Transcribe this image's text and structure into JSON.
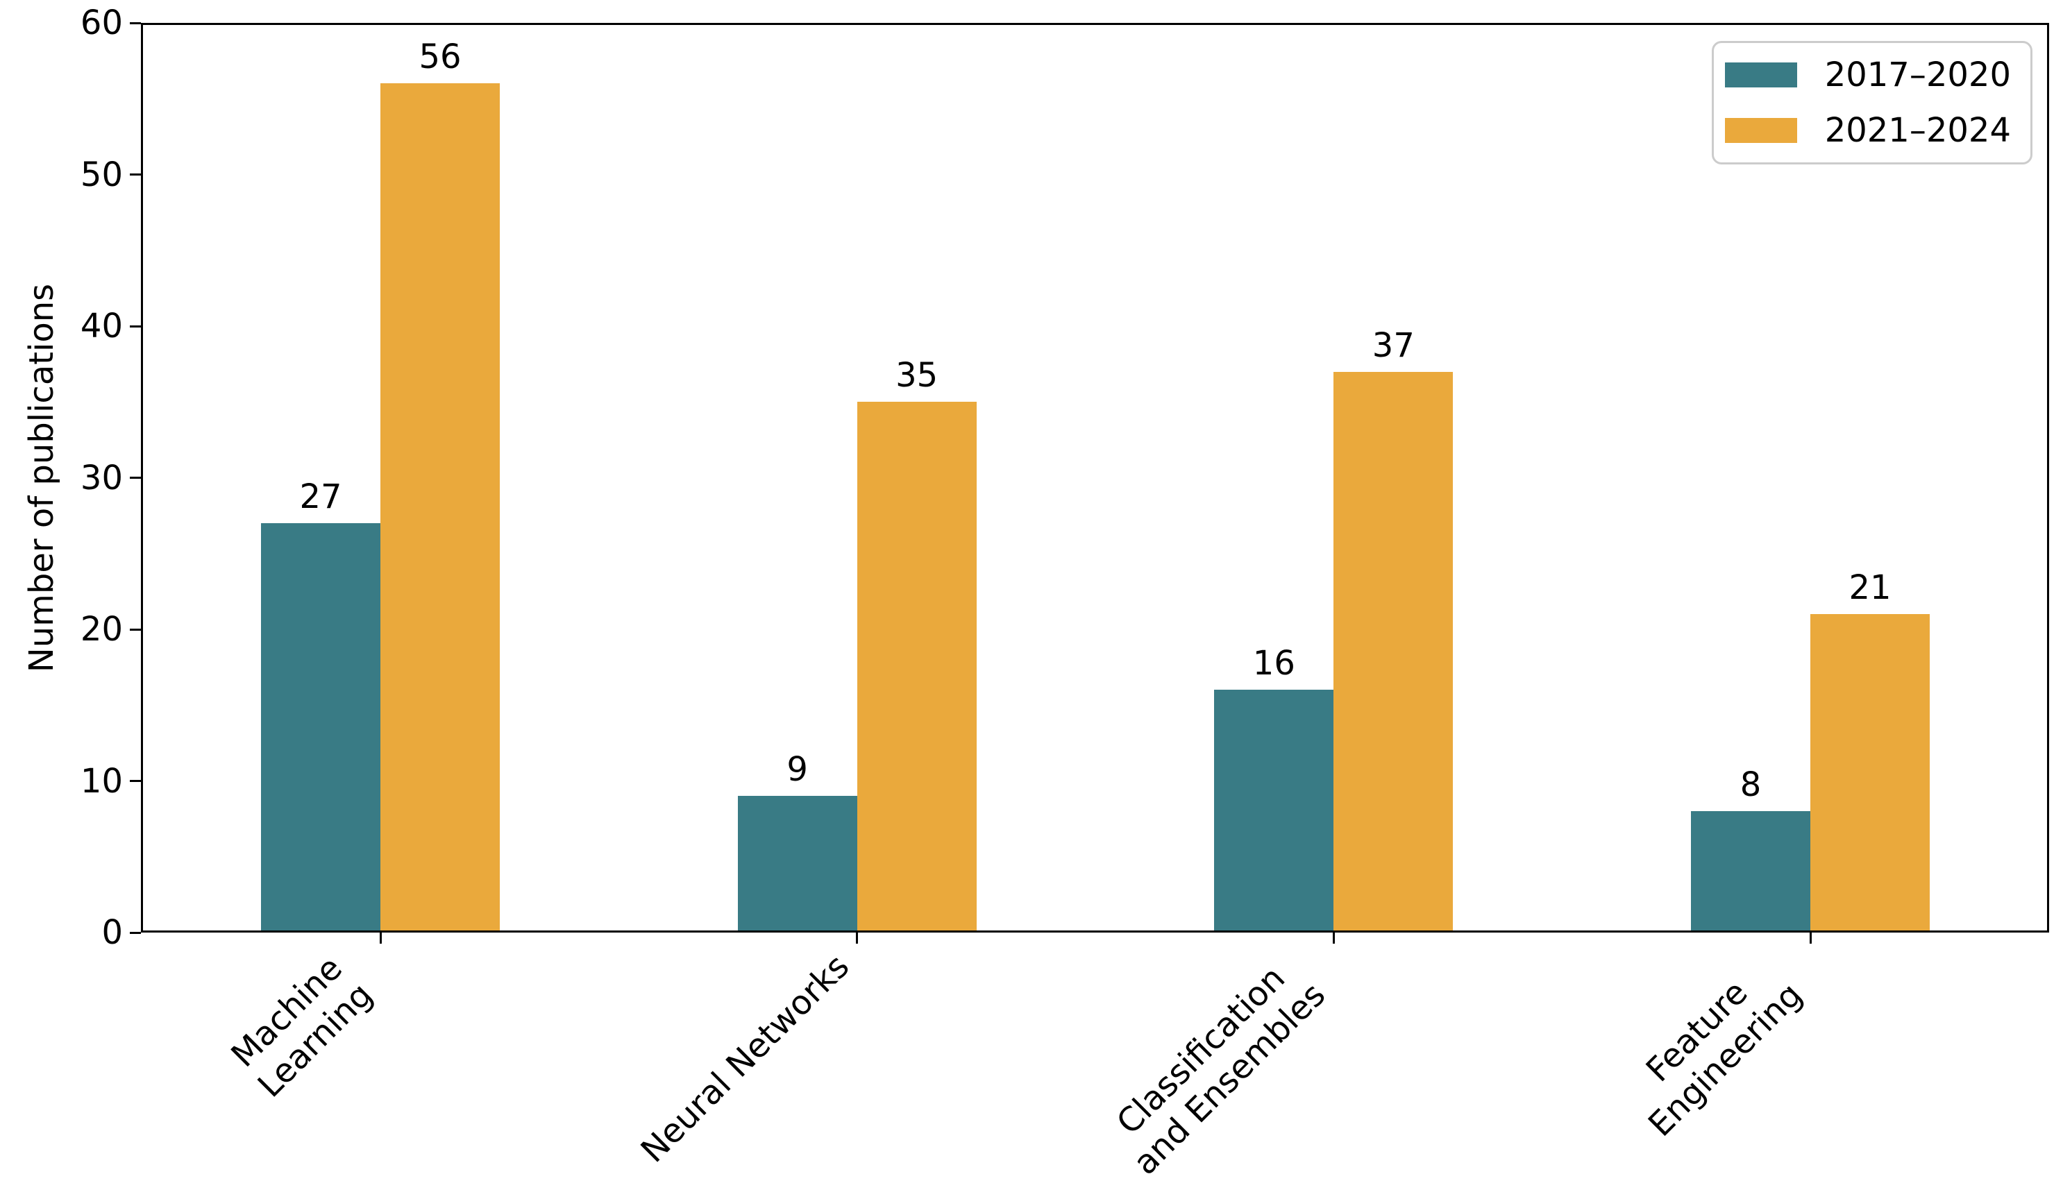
{
  "chart_data": {
    "type": "bar",
    "categories": [
      "Machine\nLearning",
      "Neural Networks",
      "Classification\nand Ensembles",
      "Feature\nEngineering"
    ],
    "series": [
      {
        "name": "2017–2020",
        "color": "#397B85",
        "values": [
          27,
          9,
          16,
          8
        ]
      },
      {
        "name": "2021–2024",
        "color": "#EAA93C",
        "values": [
          56,
          35,
          37,
          21
        ]
      }
    ],
    "bar_value_labels": [
      "27",
      "56",
      "9",
      "35",
      "16",
      "37",
      "8",
      "21"
    ],
    "title": "",
    "xlabel": "",
    "ylabel": "Number of publications",
    "ylim": [
      0,
      60
    ],
    "yticks": [
      0,
      10,
      20,
      30,
      40,
      50,
      60
    ],
    "x_tick_rotation_deg": 45,
    "grid": false,
    "legend": {
      "position": "upper right",
      "entries": [
        "2017–2020",
        "2021–2024"
      ]
    },
    "colors": {
      "axis": "#000000",
      "text": "#000000",
      "legend_border": "#cccccc",
      "background": "#ffffff"
    }
  }
}
